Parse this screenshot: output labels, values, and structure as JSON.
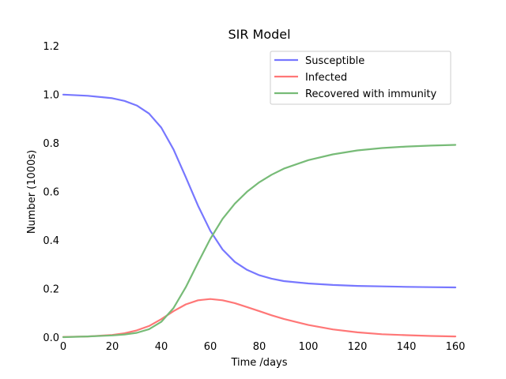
{
  "chart_data": {
    "type": "line",
    "title": "SIR Model",
    "xlabel": "Time /days",
    "ylabel": "Number (1000s)",
    "xlim": [
      0,
      160
    ],
    "ylim": [
      0,
      1.2
    ],
    "xticks": [
      0,
      20,
      40,
      60,
      80,
      100,
      120,
      140,
      160
    ],
    "yticks": [
      0.0,
      0.2,
      0.4,
      0.6,
      0.8,
      1.0,
      1.2
    ],
    "ytick_labels": [
      "0.0",
      "0.2",
      "0.4",
      "0.6",
      "0.8",
      "1.0",
      "1.2"
    ],
    "grid": false,
    "legend_position": "top-right",
    "x": [
      0,
      10,
      20,
      25,
      30,
      35,
      40,
      45,
      50,
      55,
      60,
      65,
      70,
      75,
      80,
      85,
      90,
      100,
      110,
      120,
      130,
      140,
      150,
      160
    ],
    "series": [
      {
        "name": "Susceptible",
        "color": "#7777ff",
        "values": [
          0.999,
          0.994,
          0.984,
          0.973,
          0.954,
          0.921,
          0.863,
          0.773,
          0.659,
          0.541,
          0.438,
          0.361,
          0.31,
          0.277,
          0.255,
          0.241,
          0.231,
          0.221,
          0.215,
          0.211,
          0.209,
          0.207,
          0.206,
          0.205
        ]
      },
      {
        "name": "Infected",
        "color": "#ff7777",
        "values": [
          0.001,
          0.003,
          0.009,
          0.016,
          0.028,
          0.046,
          0.074,
          0.107,
          0.135,
          0.152,
          0.157,
          0.152,
          0.14,
          0.124,
          0.107,
          0.09,
          0.075,
          0.05,
          0.032,
          0.02,
          0.012,
          0.008,
          0.005,
          0.003
        ]
      },
      {
        "name": "Recovered with immunity",
        "color": "#77bb77",
        "values": [
          0.0,
          0.003,
          0.007,
          0.011,
          0.018,
          0.033,
          0.063,
          0.12,
          0.206,
          0.307,
          0.405,
          0.487,
          0.55,
          0.599,
          0.638,
          0.669,
          0.694,
          0.729,
          0.753,
          0.769,
          0.779,
          0.785,
          0.789,
          0.792
        ]
      }
    ]
  }
}
